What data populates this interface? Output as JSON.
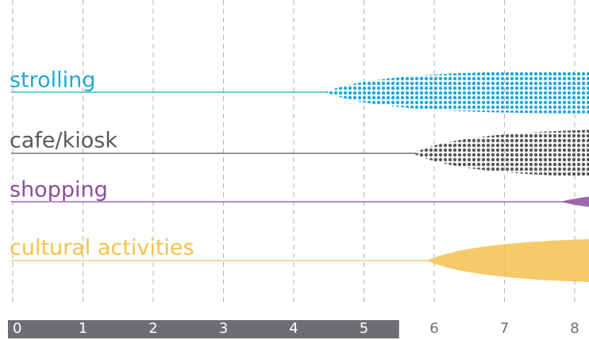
{
  "chart_data": {
    "type": "timeline",
    "xlim": [
      0,
      8
    ],
    "xticks": [
      0,
      1,
      2,
      3,
      4,
      5,
      6,
      7,
      8
    ],
    "highlight_range": [
      0,
      5.5
    ],
    "highlight_color": "#6d6e71",
    "grid": true,
    "series": [
      {
        "name": "strolling",
        "color": "#1fa9d6",
        "start": 4.45,
        "pattern": "dots"
      },
      {
        "name": "cafe/kiosk",
        "color": "#58595b",
        "start": 5.7,
        "pattern": "dots"
      },
      {
        "name": "shopping",
        "color": "#8e4d9f",
        "start": 7.8,
        "pattern": "solid"
      },
      {
        "name": "cultural activities",
        "color": "#f6c14f",
        "start": 5.9,
        "pattern": "solid"
      }
    ]
  }
}
